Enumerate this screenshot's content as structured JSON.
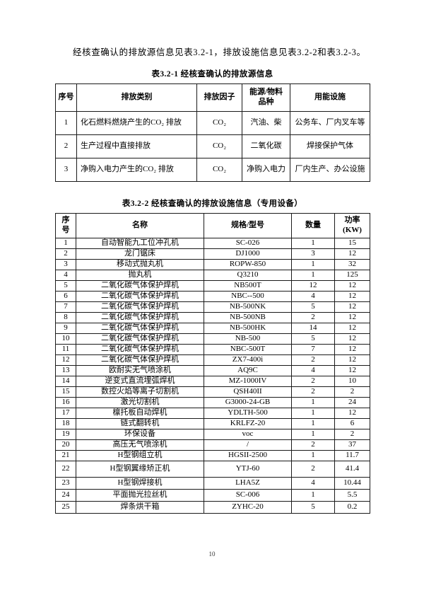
{
  "page": {
    "intro_paragraph": "经核查确认的排放源信息见表3.2-1，排放设施信息见表3.2-2和表3.2-3。",
    "page_number": "10"
  },
  "table1": {
    "title": "表3.2-1 经核查确认的排放源信息",
    "headers": [
      "序号",
      "排放类别",
      "排放因子",
      "能源/物料\n品种",
      "用能设施"
    ],
    "rows": [
      [
        "1",
        "化石燃料燃烧产生的CO₂ 排放",
        "CO₂",
        "汽油、柴",
        "公务车、厂内叉车等"
      ],
      [
        "2",
        "生产过程中直接排放",
        "CO₂",
        "二氧化碳",
        "焊接保护气体"
      ],
      [
        "3",
        "净购入电力产生的CO₂ 排放",
        "CO₂",
        "净购入电力",
        "厂内生产、办公设施"
      ]
    ]
  },
  "table2": {
    "title": "表3.2-2 经核查确认的排放设施信息（专用设备）",
    "headers": [
      "序\n号",
      "名称",
      "规格/型号",
      "数量",
      "功率\n(KW)"
    ],
    "rows": [
      [
        "1",
        "自动智能九工位冲孔机",
        "SC-026",
        "1",
        "15"
      ],
      [
        "2",
        "龙门锯床",
        "DJ1000",
        "3",
        "12"
      ],
      [
        "3",
        "移动式抛丸机",
        "ROPW-850",
        "1",
        "32"
      ],
      [
        "4",
        "抛丸机",
        "Q3210",
        "1",
        "125"
      ],
      [
        "5",
        "二氧化碳气体保护焊机",
        "NB500T",
        "12",
        "12"
      ],
      [
        "6",
        "二氧化碳气体保护焊机",
        "NBC--500",
        "4",
        "12"
      ],
      [
        "7",
        "二氧化碳气体保护焊机",
        "NB-500NK",
        "5",
        "12"
      ],
      [
        "8",
        "二氧化碳气体保护焊机",
        "NB-500NB",
        "2",
        "12"
      ],
      [
        "9",
        "二氧化碳气体保护焊机",
        "NB-500HK",
        "14",
        "12"
      ],
      [
        "10",
        "二氧化碳气体保护焊机",
        "NB-500",
        "5",
        "12"
      ],
      [
        "11",
        "二氧化碳气体保护焊机",
        "NBC-500T",
        "7",
        "12"
      ],
      [
        "12",
        "二氧化碳气体保护焊机",
        "ZX7-400i",
        "2",
        "12"
      ],
      [
        "13",
        "欧耐实无气喷涂机",
        "AQ9C",
        "4",
        "12"
      ],
      [
        "14",
        "逆变式直流埋弧焊机",
        "MZ-1000IV",
        "2",
        "10"
      ],
      [
        "15",
        "数控火焰等离子切割机",
        "QSH40II",
        "2",
        "2"
      ],
      [
        "16",
        "激光切割机",
        "G3000-24-GB",
        "1",
        "24"
      ],
      [
        "17",
        "檩托板自动焊机",
        "YDLTH-500",
        "1",
        "12"
      ],
      [
        "18",
        "链式翻转机",
        "KRLFZ-20",
        "1",
        "6"
      ],
      [
        "19",
        "环保设备",
        "voc",
        "1",
        "2"
      ],
      [
        "20",
        "高压无气喷涂机",
        "/",
        "2",
        "37"
      ],
      [
        "21",
        "H型钢组立机",
        "HGSII-2500",
        "1",
        "11.7"
      ],
      [
        "22",
        "H型钢翼缘矫正机",
        "YTJ-60",
        "2",
        "41.4"
      ],
      [
        "23",
        "H型钢焊接机",
        "LHA5Z",
        "4",
        "10.44"
      ],
      [
        "24",
        "平面抛光拉丝机",
        "SC-006",
        "1",
        "5.5"
      ],
      [
        "25",
        "焊条烘干箱",
        "ZYHC-20",
        "5",
        "0.2"
      ]
    ]
  }
}
